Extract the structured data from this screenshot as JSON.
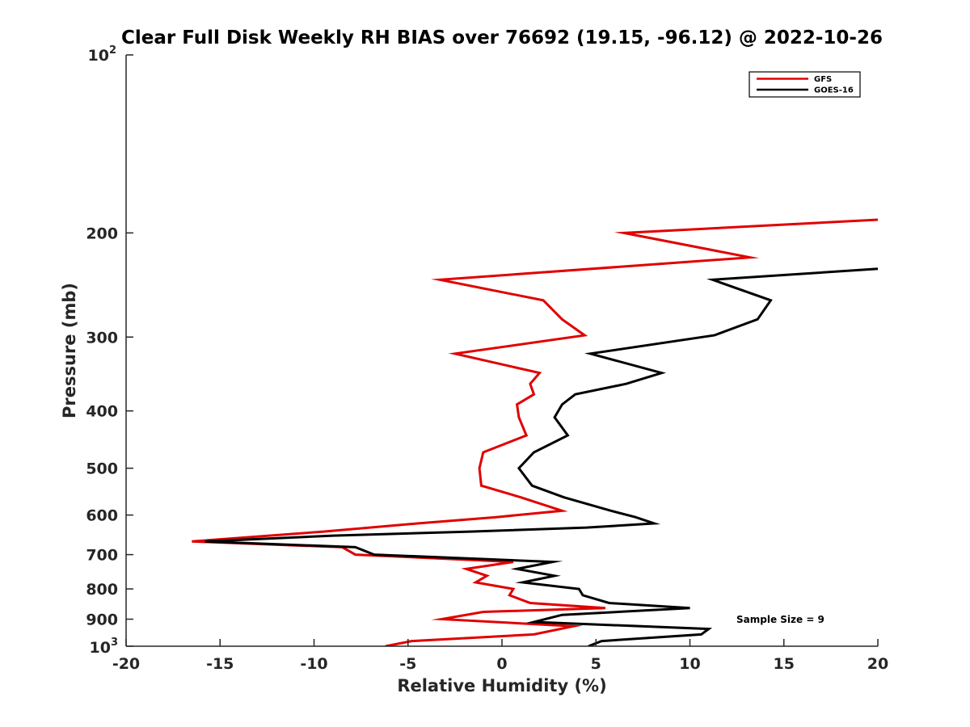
{
  "chart_data": {
    "type": "line",
    "title": "Clear Full Disk Weekly RH BIAS over 76692 (19.15, -96.12) @ 2022-10-26",
    "xlabel": "Relative Humidity (%)",
    "ylabel": "Pressure (mb)",
    "xlim": [
      -20,
      20
    ],
    "ylim": [
      100,
      1000
    ],
    "yscale": "log",
    "y_reversed": true,
    "x_ticks": [
      -20,
      -15,
      -10,
      -5,
      0,
      5,
      10,
      15,
      20
    ],
    "x_tick_labels": [
      "-20",
      "-15",
      "-10",
      "-5",
      "0",
      "5",
      "10",
      "15",
      "20"
    ],
    "y_ticks": [
      200,
      300,
      400,
      500,
      600,
      700,
      800,
      900
    ],
    "y_tick_labels": [
      "200",
      "300",
      "400",
      "500",
      "600",
      "700",
      "800",
      "900"
    ],
    "y_end_labels": {
      "top_base": "10",
      "top_exp": "2",
      "bottom_base": "10",
      "bottom_exp": "3"
    },
    "legend_placement": "top-right",
    "annotation": "Sample Size = 9",
    "series": [
      {
        "name": "GFS",
        "color": "#e00000",
        "x": [
          20,
          6.5,
          13.2,
          -3.3,
          2.2,
          3.2,
          4.4,
          -2.5,
          2.0,
          1.5,
          1.7,
          0.8,
          0.9,
          1.3,
          -1.0,
          -1.2,
          -1.1,
          1.0,
          3.2,
          -0.3,
          -4.5,
          -9.5,
          -16.5,
          -8.5,
          -7.8,
          0.6,
          -1.9,
          -0.8,
          -1.4,
          0.6,
          0.4,
          1.5,
          5.5,
          -1.0,
          -3.2,
          3.8,
          1.7,
          -4.8,
          -6.2
        ],
        "y": [
          190,
          200,
          220,
          240,
          260,
          280,
          298,
          320,
          345,
          360,
          375,
          390,
          410,
          440,
          470,
          500,
          535,
          560,
          590,
          605,
          620,
          640,
          665,
          680,
          700,
          720,
          740,
          760,
          780,
          800,
          820,
          845,
          862,
          875,
          900,
          925,
          955,
          980,
          1000
        ]
      },
      {
        "name": "GOES-16",
        "color": "#000000",
        "x": [
          20,
          11.2,
          14.3,
          13.6,
          11.3,
          4.7,
          8.5,
          6.6,
          3.9,
          3.2,
          2.8,
          3.5,
          1.7,
          0.9,
          1.6,
          3.3,
          5.8,
          7.1,
          8.1,
          4.5,
          -1.7,
          -9.0,
          -15.8,
          -7.8,
          -6.8,
          2.7,
          0.8,
          2.8,
          1.1,
          4.1,
          4.3,
          5.7,
          10.0,
          3.2,
          1.7,
          11.0,
          10.6,
          5.3,
          4.6
        ],
        "y": [
          230,
          240,
          260,
          280,
          298,
          320,
          345,
          360,
          375,
          390,
          410,
          440,
          470,
          500,
          535,
          560,
          590,
          605,
          620,
          630,
          640,
          650,
          665,
          680,
          700,
          720,
          740,
          760,
          780,
          800,
          820,
          845,
          862,
          885,
          910,
          935,
          955,
          980,
          1000
        ]
      }
    ]
  }
}
